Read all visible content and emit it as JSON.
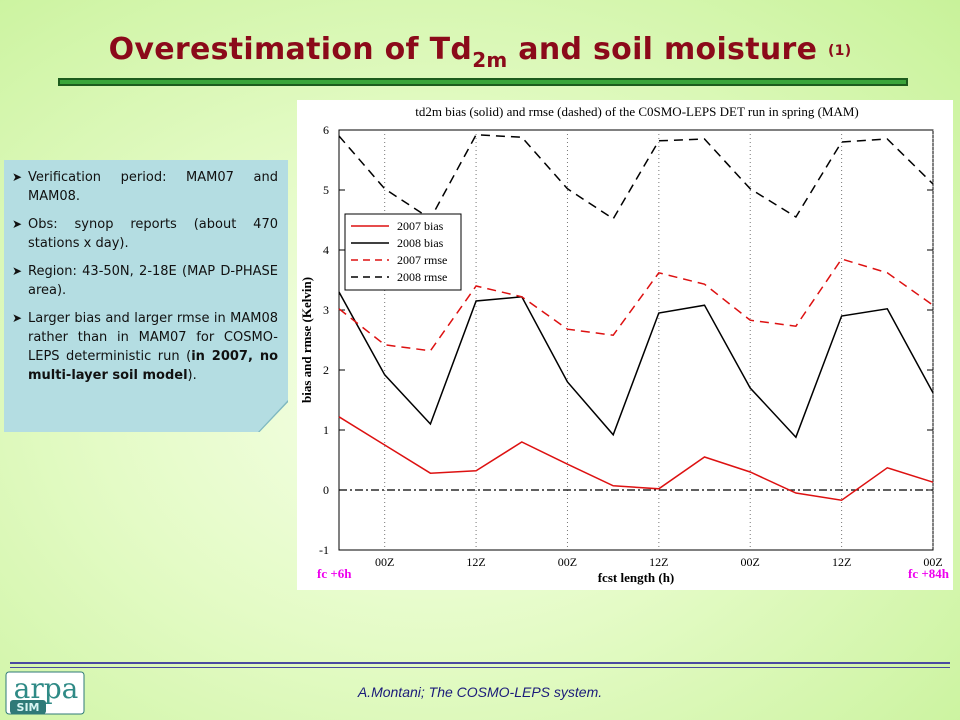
{
  "slide": {
    "title_main": "Overestimation  of Td",
    "title_sub": "2m",
    "title_rest": " and soil moisture ",
    "title_small": "(1)",
    "footer": "A.Montani; The COSMO-LEPS system.",
    "logo_text": "arpa",
    "logo_sub": "SIM"
  },
  "bullets": [
    {
      "text": "Verification period: MAM07 and MAM08."
    },
    {
      "text": "Obs: synop reports (about 470 stations x day)."
    },
    {
      "text": "Region: 43-50N, 2-18E (MAP D-PHASE area)."
    },
    {
      "text_before": "Larger bias and larger rmse in MAM08 rather than in MAM07 for COSMO-LEPS deterministic run (",
      "bold": "in 2007, no multi-layer soil model",
      "text_after": ")."
    }
  ],
  "chart_data": {
    "type": "line",
    "title": "td2m bias (solid) and rmse (dashed) of the C0SMO-LEPS DET run in spring (MAM)",
    "xlabel": "fcst length (h)",
    "ylabel": "bias and rmse (Kelvin)",
    "x": [
      6,
      12,
      18,
      24,
      30,
      36,
      42,
      48,
      54,
      60,
      66,
      72,
      78,
      84
    ],
    "xlim": [
      6,
      84
    ],
    "ylim": [
      -1,
      6
    ],
    "yticks": [
      -1,
      0,
      1,
      2,
      3,
      4,
      5,
      6
    ],
    "xticks": [
      {
        "x": 12,
        "label": "00Z"
      },
      {
        "x": 24,
        "label": "12Z"
      },
      {
        "x": 36,
        "label": "00Z"
      },
      {
        "x": 48,
        "label": "12Z"
      },
      {
        "x": 60,
        "label": "00Z"
      },
      {
        "x": 72,
        "label": "12Z"
      },
      {
        "x": 84,
        "label": "00Z"
      }
    ],
    "corner_labels": {
      "left": "fc +6h",
      "right": "fc +84h"
    },
    "zero_line": true,
    "legend_position": "upper-left",
    "series": [
      {
        "name": "2007 bias",
        "color": "#dd1111",
        "dash": false,
        "values": [
          1.22,
          0.75,
          0.28,
          0.32,
          0.8,
          0.43,
          0.07,
          0.02,
          0.55,
          0.3,
          -0.05,
          -0.17,
          0.37,
          0.13
        ]
      },
      {
        "name": "2008 bias",
        "color": "#000000",
        "dash": false,
        "values": [
          3.3,
          1.92,
          1.1,
          3.15,
          3.22,
          1.8,
          0.92,
          2.95,
          3.08,
          1.7,
          0.88,
          2.9,
          3.02,
          1.62
        ]
      },
      {
        "name": "2007 rmse",
        "color": "#dd1111",
        "dash": true,
        "values": [
          3.02,
          2.42,
          2.32,
          3.4,
          3.22,
          2.68,
          2.58,
          3.62,
          3.43,
          2.83,
          2.73,
          3.85,
          3.62,
          3.08
        ]
      },
      {
        "name": "2008 rmse",
        "color": "#000000",
        "dash": true,
        "values": [
          5.9,
          5.02,
          4.52,
          5.92,
          5.88,
          5.02,
          4.52,
          5.82,
          5.85,
          5.02,
          4.55,
          5.8,
          5.85,
          5.1
        ]
      }
    ]
  }
}
